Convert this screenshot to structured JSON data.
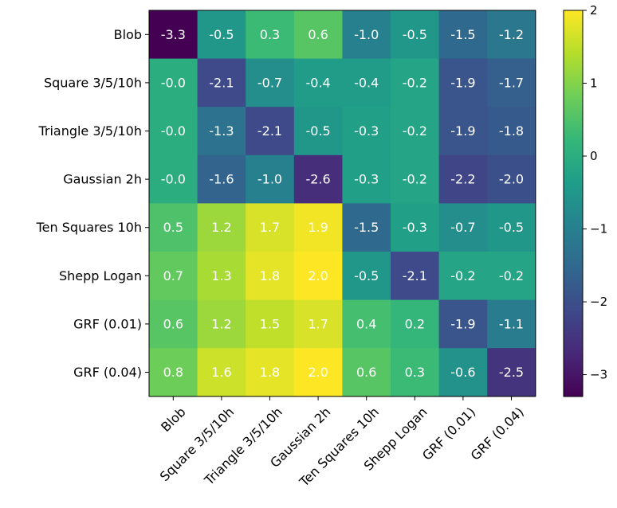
{
  "chart_data": {
    "type": "heatmap",
    "title": "",
    "xlabel": "",
    "ylabel": "",
    "rows": [
      "Blob",
      "Square 3/5/10h",
      "Triangle 3/5/10h",
      "Gaussian 2h",
      "Ten Squares 10h",
      "Shepp Logan",
      "GRF (0.01)",
      "GRF (0.04)"
    ],
    "columns": [
      "Blob",
      "Square 3/5/10h",
      "Triangle 3/5/10h",
      "Gaussian 2h",
      "Ten Squares 10h",
      "Shepp Logan",
      "GRF (0.01)",
      "GRF (0.04)"
    ],
    "values": [
      [
        -3.3,
        -0.5,
        0.3,
        0.6,
        -1.0,
        -0.5,
        -1.5,
        -1.2
      ],
      [
        -0.0,
        -2.1,
        -0.7,
        -0.4,
        -0.4,
        -0.2,
        -1.9,
        -1.7
      ],
      [
        -0.0,
        -1.3,
        -2.1,
        -0.5,
        -0.3,
        -0.2,
        -1.9,
        -1.8
      ],
      [
        -0.0,
        -1.6,
        -1.0,
        -2.6,
        -0.3,
        -0.2,
        -2.2,
        -2.0
      ],
      [
        0.5,
        1.2,
        1.7,
        1.9,
        -1.5,
        -0.3,
        -0.7,
        -0.5
      ],
      [
        0.7,
        1.3,
        1.8,
        2.0,
        -0.5,
        -2.1,
        -0.2,
        -0.2
      ],
      [
        0.6,
        1.2,
        1.5,
        1.7,
        0.4,
        0.2,
        -1.9,
        -1.1
      ],
      [
        0.8,
        1.6,
        1.8,
        2.0,
        0.6,
        0.3,
        -0.6,
        -2.5
      ]
    ],
    "value_labels": [
      [
        "-3.3",
        "-0.5",
        "0.3",
        "0.6",
        "-1.0",
        "-0.5",
        "-1.5",
        "-1.2"
      ],
      [
        "-0.0",
        "-2.1",
        "-0.7",
        "-0.4",
        "-0.4",
        "-0.2",
        "-1.9",
        "-1.7"
      ],
      [
        "-0.0",
        "-1.3",
        "-2.1",
        "-0.5",
        "-0.3",
        "-0.2",
        "-1.9",
        "-1.8"
      ],
      [
        "-0.0",
        "-1.6",
        "-1.0",
        "-2.6",
        "-0.3",
        "-0.2",
        "-2.2",
        "-2.0"
      ],
      [
        "0.5",
        "1.2",
        "1.7",
        "1.9",
        "-1.5",
        "-0.3",
        "-0.7",
        "-0.5"
      ],
      [
        "0.7",
        "1.3",
        "1.8",
        "2.0",
        "-0.5",
        "-2.1",
        "-0.2",
        "-0.2"
      ],
      [
        "0.6",
        "1.2",
        "1.5",
        "1.7",
        "0.4",
        "0.2",
        "-1.9",
        "-1.1"
      ],
      [
        "0.8",
        "1.6",
        "1.8",
        "2.0",
        "0.6",
        "0.3",
        "-0.6",
        "-2.5"
      ]
    ],
    "colormap": "viridis",
    "colormap_stops": [
      "#440154",
      "#482878",
      "#3e4989",
      "#31688e",
      "#26828e",
      "#1f9e89",
      "#35b779",
      "#6ece58",
      "#b5de2b",
      "#fde725"
    ],
    "vmin": -3.3,
    "vmax": 2.0,
    "colorbar": {
      "ticks": [
        2,
        1,
        0,
        -1,
        -2,
        -3
      ],
      "tick_labels": [
        "2",
        "1",
        "0",
        "−1",
        "−2",
        "−3"
      ],
      "placement": "right"
    },
    "cell_text_color": "#ffffff",
    "grid": false,
    "xtick_rotation_deg": -45
  }
}
